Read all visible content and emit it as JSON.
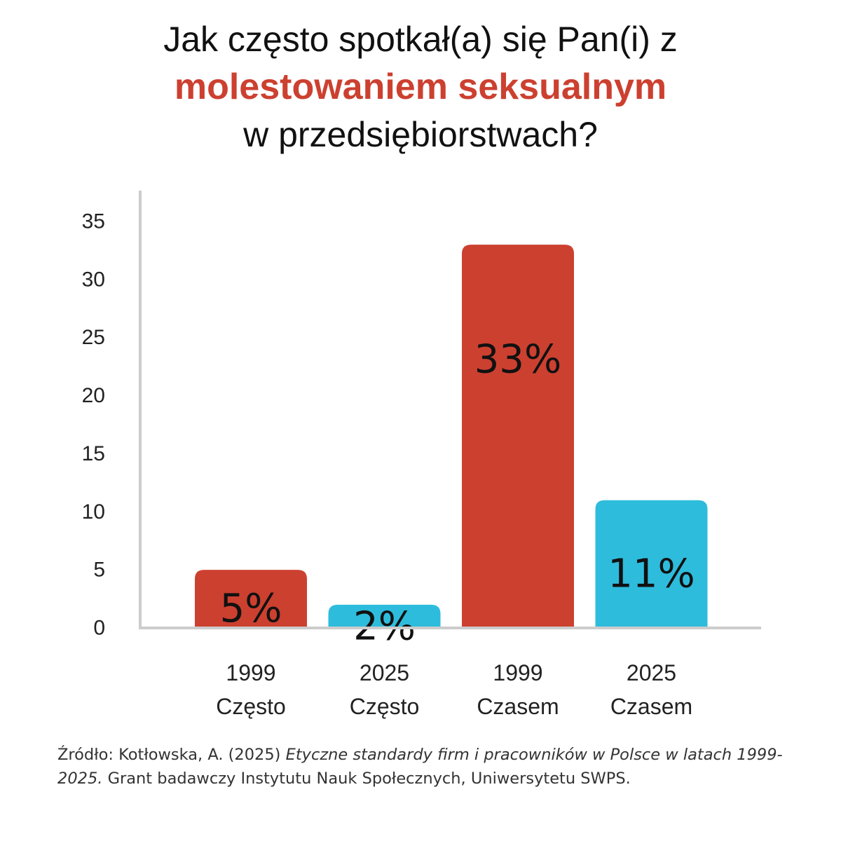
{
  "title": {
    "line1": "Jak często spotkał(a) się Pan(i) z",
    "highlight": "molestowaniem seksualnym",
    "line3": "w przedsiębiorstwach?"
  },
  "colors": {
    "accent": "#cc4030",
    "year_1999": "#cc4030",
    "year_2025": "#2ebcdc",
    "axis": "#cccccc"
  },
  "chart_data": {
    "type": "bar",
    "title": "Jak często spotkał(a) się Pan(i) z molestowaniem seksualnym w przedsiębiorstwach?",
    "xlabel": "",
    "ylabel": "",
    "ylim": [
      0,
      35
    ],
    "yticks": [
      0,
      5,
      10,
      15,
      20,
      25,
      30,
      35
    ],
    "grid": false,
    "categories": [
      {
        "year": "1999",
        "label": "Często"
      },
      {
        "year": "2025",
        "label": "Często"
      },
      {
        "year": "1999",
        "label": "Czasem"
      },
      {
        "year": "2025",
        "label": "Czasem"
      }
    ],
    "values": [
      5,
      2,
      33,
      11
    ],
    "value_labels": [
      "5%",
      "2%",
      "33%",
      "11%"
    ],
    "bar_colors": [
      "#cc4030",
      "#2ebcdc",
      "#cc4030",
      "#2ebcdc"
    ]
  },
  "source": {
    "prefix": "Źródło: Kotłowska, A. (2025) ",
    "title_italic": "Etyczne standardy firm i pracowników w Polsce w latach 1999-2025.",
    "suffix": " Grant badawczy Instytutu Nauk Społecznych, Uniwersytetu SWPS."
  }
}
